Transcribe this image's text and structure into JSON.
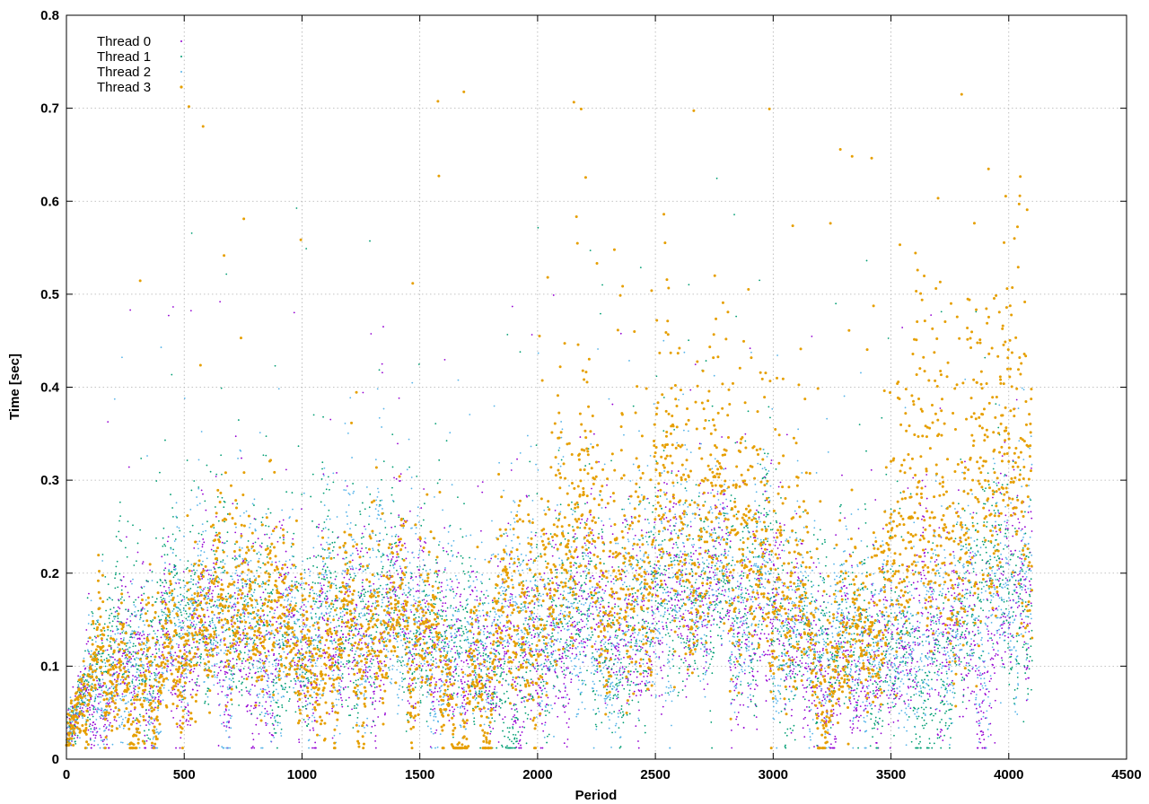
{
  "chart_data": {
    "type": "scatter",
    "title": "",
    "xlabel": "Period",
    "ylabel": "Time [sec]",
    "xlim": [
      0,
      4500
    ],
    "ylim": [
      0,
      0.8
    ],
    "x_ticks": [
      0,
      500,
      1000,
      1500,
      2000,
      2500,
      3000,
      3500,
      4000,
      4500
    ],
    "y_ticks": [
      0,
      0.1,
      0.2,
      0.3,
      0.4,
      0.5,
      0.6,
      0.7,
      0.8
    ],
    "x_tick_labels": [
      "0",
      "500",
      "1000",
      "1500",
      "2000",
      "2500",
      "3000",
      "3500",
      "4000",
      "4500"
    ],
    "y_tick_labels": [
      "0",
      "0.1",
      "0.2",
      "0.3",
      "0.4",
      "0.5",
      "0.6",
      "0.7",
      "0.8"
    ],
    "grid": true,
    "legend_position": "top-left",
    "points_per_series": 4100,
    "series": [
      {
        "name": "Thread 0",
        "color": "#9400d3",
        "profile": [
          {
            "x": 0,
            "median": 0.02
          },
          {
            "x": 80,
            "median": 0.08
          },
          {
            "x": 250,
            "median": 0.1
          },
          {
            "x": 600,
            "median": 0.12
          },
          {
            "x": 1000,
            "median": 0.12
          },
          {
            "x": 1500,
            "median": 0.13
          },
          {
            "x": 1700,
            "median": 0.1
          },
          {
            "x": 2000,
            "median": 0.14
          },
          {
            "x": 2500,
            "median": 0.16
          },
          {
            "x": 3000,
            "median": 0.15
          },
          {
            "x": 3300,
            "median": 0.11
          },
          {
            "x": 3500,
            "median": 0.13
          },
          {
            "x": 4100,
            "median": 0.17
          }
        ],
        "max_value": 0.5
      },
      {
        "name": "Thread 1",
        "color": "#009e73",
        "profile": [
          {
            "x": 0,
            "median": 0.02
          },
          {
            "x": 80,
            "median": 0.08
          },
          {
            "x": 250,
            "median": 0.12
          },
          {
            "x": 600,
            "median": 0.14
          },
          {
            "x": 1000,
            "median": 0.14
          },
          {
            "x": 1500,
            "median": 0.15
          },
          {
            "x": 1700,
            "median": 0.12
          },
          {
            "x": 2000,
            "median": 0.15
          },
          {
            "x": 2500,
            "median": 0.16
          },
          {
            "x": 3000,
            "median": 0.15
          },
          {
            "x": 3300,
            "median": 0.11
          },
          {
            "x": 3500,
            "median": 0.14
          },
          {
            "x": 4100,
            "median": 0.18
          }
        ],
        "max_value": 0.64
      },
      {
        "name": "Thread 2",
        "color": "#56b4e9",
        "profile": [
          {
            "x": 0,
            "median": 0.02
          },
          {
            "x": 80,
            "median": 0.08
          },
          {
            "x": 250,
            "median": 0.11
          },
          {
            "x": 600,
            "median": 0.13
          },
          {
            "x": 1000,
            "median": 0.13
          },
          {
            "x": 1500,
            "median": 0.15
          },
          {
            "x": 1700,
            "median": 0.11
          },
          {
            "x": 2000,
            "median": 0.15
          },
          {
            "x": 2500,
            "median": 0.17
          },
          {
            "x": 3000,
            "median": 0.16
          },
          {
            "x": 3300,
            "median": 0.1
          },
          {
            "x": 3500,
            "median": 0.13
          },
          {
            "x": 4100,
            "median": 0.19
          }
        ],
        "max_value": 0.45
      },
      {
        "name": "Thread 3",
        "color": "#e69f00",
        "profile": [
          {
            "x": 0,
            "median": 0.02
          },
          {
            "x": 80,
            "median": 0.07
          },
          {
            "x": 250,
            "median": 0.09
          },
          {
            "x": 600,
            "median": 0.12
          },
          {
            "x": 1000,
            "median": 0.12
          },
          {
            "x": 1500,
            "median": 0.13
          },
          {
            "x": 1700,
            "median": 0.07
          },
          {
            "x": 2000,
            "median": 0.2
          },
          {
            "x": 2500,
            "median": 0.24
          },
          {
            "x": 3000,
            "median": 0.2
          },
          {
            "x": 3200,
            "median": 0.1
          },
          {
            "x": 3400,
            "median": 0.1
          },
          {
            "x": 3600,
            "median": 0.25
          },
          {
            "x": 4100,
            "median": 0.3
          }
        ],
        "max_value": 0.72
      }
    ]
  }
}
